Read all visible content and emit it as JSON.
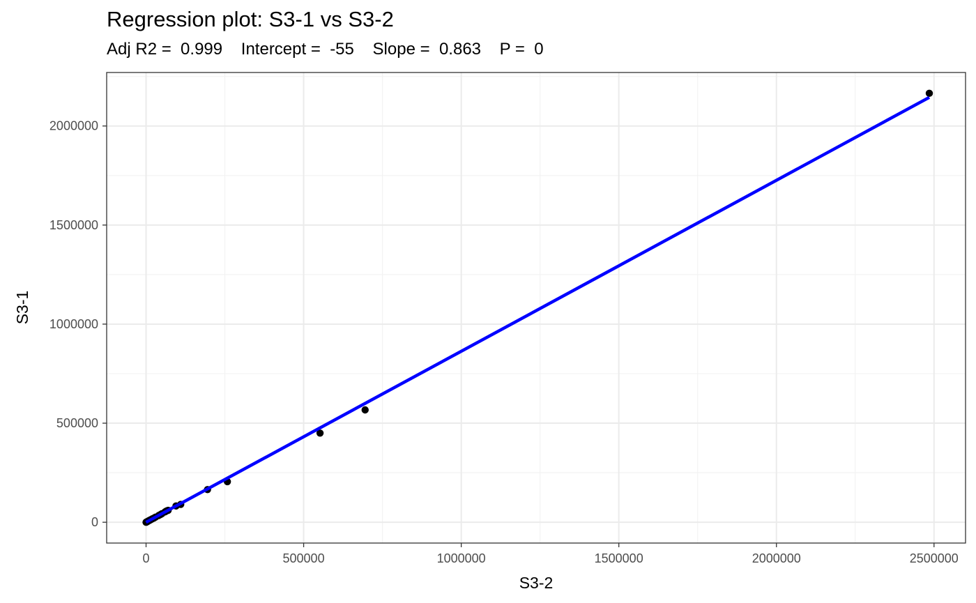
{
  "chart_data": {
    "type": "scatter",
    "title": "Regression plot: S3-1 vs S3-2",
    "subtitle": "Adj R2 =  0.999    Intercept =  -55    Slope =  0.863    P =  0",
    "xlabel": "S3-2",
    "ylabel": "S3-1",
    "xlim": [
      -125000,
      2600000
    ],
    "ylim": [
      -105000,
      2270000
    ],
    "x_ticks": [
      0,
      500000,
      1000000,
      1500000,
      2000000,
      2500000
    ],
    "y_ticks": [
      0,
      500000,
      1000000,
      1500000,
      2000000
    ],
    "x_tick_labels": [
      "0",
      "500000",
      "1000000",
      "1500000",
      "2000000",
      "2500000"
    ],
    "y_tick_labels": [
      "0",
      "500000",
      "1000000",
      "1500000",
      "2000000"
    ],
    "grid": true,
    "points": [
      {
        "x": 0,
        "y": 0
      },
      {
        "x": 1000,
        "y": 800
      },
      {
        "x": 2000,
        "y": 1800
      },
      {
        "x": 3000,
        "y": 2500
      },
      {
        "x": 5000,
        "y": 4200
      },
      {
        "x": 7000,
        "y": 6000
      },
      {
        "x": 9000,
        "y": 8000
      },
      {
        "x": 12000,
        "y": 10500
      },
      {
        "x": 15000,
        "y": 13000
      },
      {
        "x": 20000,
        "y": 17500
      },
      {
        "x": 25000,
        "y": 21000
      },
      {
        "x": 30000,
        "y": 26000
      },
      {
        "x": 40000,
        "y": 34000
      },
      {
        "x": 45000,
        "y": 38000
      },
      {
        "x": 50000,
        "y": 43000
      },
      {
        "x": 60000,
        "y": 52000
      },
      {
        "x": 65000,
        "y": 57000
      },
      {
        "x": 70000,
        "y": 60000
      },
      {
        "x": 95000,
        "y": 82000
      },
      {
        "x": 110000,
        "y": 90000
      },
      {
        "x": 195000,
        "y": 165000
      },
      {
        "x": 258000,
        "y": 205000
      },
      {
        "x": 552000,
        "y": 450000
      },
      {
        "x": 695000,
        "y": 567000
      },
      {
        "x": 2485000,
        "y": 2165000
      }
    ],
    "regression": {
      "intercept": -55,
      "slope": 0.863,
      "x_range": [
        0,
        2485000
      ],
      "color": "#0000ff"
    },
    "point_color": "#000000"
  }
}
